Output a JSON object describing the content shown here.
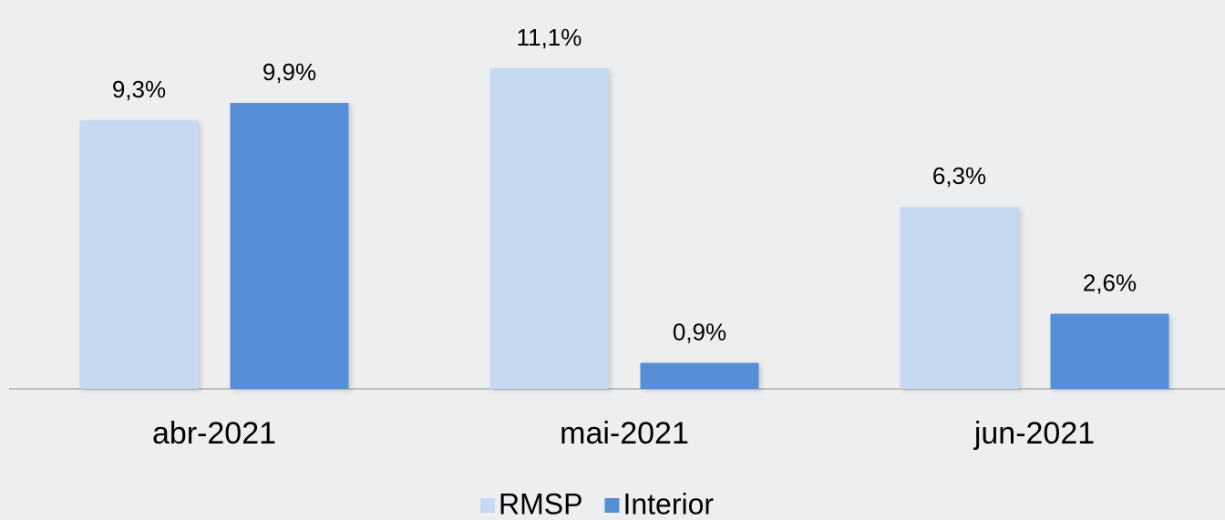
{
  "chart_data": {
    "type": "bar",
    "categories": [
      "abr-2021",
      "mai-2021",
      "jun-2021"
    ],
    "series": [
      {
        "name": "RMSP",
        "color": "#c6d9f1",
        "values": [
          9.3,
          11.1,
          6.3
        ],
        "value_labels": [
          "9,3%",
          "11,1%",
          "6,3%"
        ]
      },
      {
        "name": "Interior",
        "color": "#558ed5",
        "values": [
          9.9,
          0.9,
          2.6
        ],
        "value_labels": [
          "9,9%",
          "0,9%",
          "2,6%"
        ]
      }
    ],
    "legend": "bottom"
  }
}
